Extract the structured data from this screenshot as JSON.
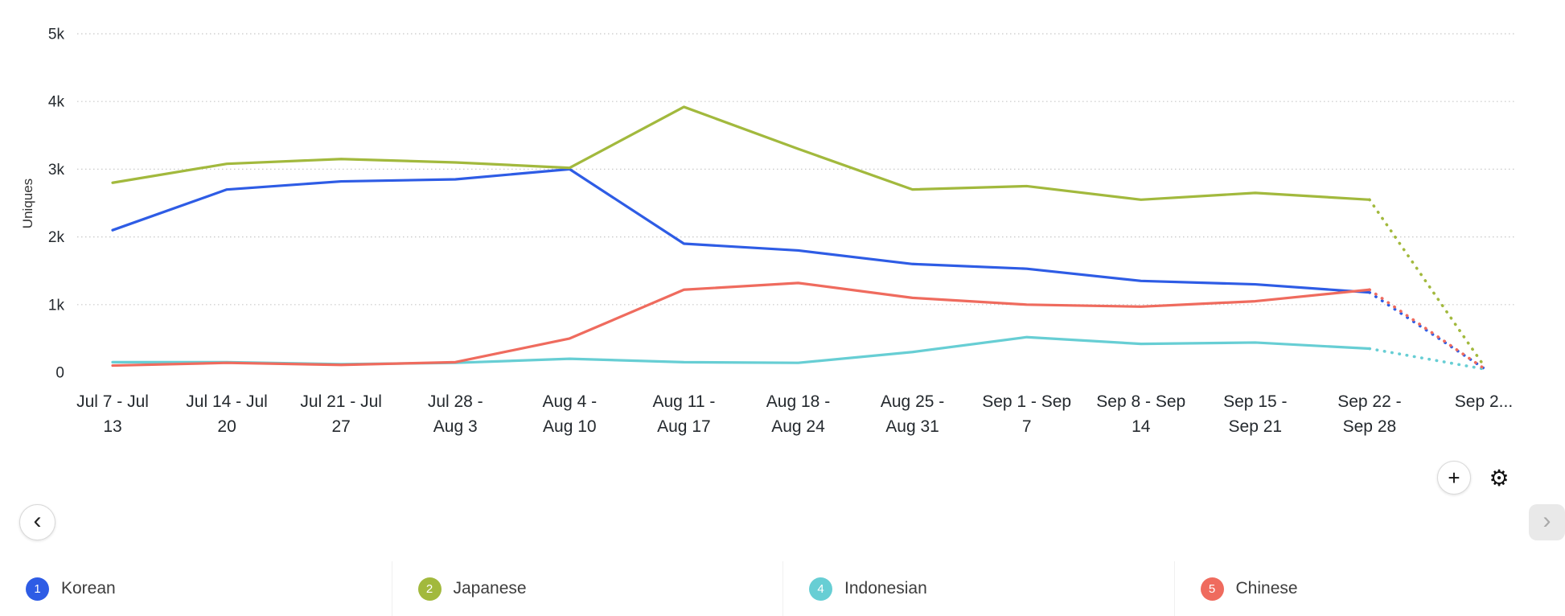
{
  "chart_data": {
    "type": "line",
    "title": "",
    "ylabel": "Uniques",
    "ylim": [
      0,
      5000
    ],
    "grid": "dotted-horizontal",
    "legend_position": "bottom",
    "last_segment_style": "dotted",
    "yticks": [
      {
        "v": 5000,
        "label": "5k"
      },
      {
        "v": 4000,
        "label": "4k"
      },
      {
        "v": 3000,
        "label": "3k"
      },
      {
        "v": 2000,
        "label": "2k"
      },
      {
        "v": 1000,
        "label": "1k"
      },
      {
        "v": 0,
        "label": "0"
      }
    ],
    "categories": [
      [
        "Jul 7 - Jul",
        "13"
      ],
      [
        "Jul 14 - Jul",
        "20"
      ],
      [
        "Jul 21 - Jul",
        "27"
      ],
      [
        "Jul 28 -",
        "Aug 3"
      ],
      [
        "Aug 4 -",
        "Aug 10"
      ],
      [
        "Aug 11 -",
        "Aug 17"
      ],
      [
        "Aug 18 -",
        "Aug 24"
      ],
      [
        "Aug 25 -",
        "Aug 31"
      ],
      [
        "Sep 1 - Sep",
        "7"
      ],
      [
        "Sep 8 - Sep",
        "14"
      ],
      [
        "Sep 15 -",
        "Sep 21"
      ],
      [
        "Sep 22 -",
        "Sep 28"
      ],
      [
        "Sep 2..."
      ]
    ],
    "series": [
      {
        "name": "Korean",
        "number": "1",
        "color": "#2e5ce5",
        "values": [
          2100,
          2700,
          2820,
          2850,
          3000,
          1900,
          1800,
          1600,
          1530,
          1350,
          1300,
          1180,
          60
        ]
      },
      {
        "name": "Japanese",
        "number": "2",
        "color": "#a2b93d",
        "values": [
          2800,
          3080,
          3150,
          3100,
          3020,
          3920,
          3300,
          2700,
          2750,
          2550,
          2650,
          2550,
          100
        ]
      },
      {
        "name": "Indonesian",
        "number": "4",
        "color": "#67ced4",
        "values": [
          150,
          150,
          120,
          140,
          200,
          150,
          140,
          300,
          520,
          420,
          440,
          350,
          50
        ]
      },
      {
        "name": "Chinese",
        "number": "5",
        "color": "#ef6b5e",
        "values": [
          100,
          140,
          110,
          150,
          500,
          1220,
          1320,
          1100,
          1000,
          970,
          1050,
          1220,
          60
        ]
      }
    ]
  },
  "controls": {
    "add_label": "+",
    "settings_icon": "⚙",
    "prev_label": "‹",
    "next_label": "›"
  }
}
